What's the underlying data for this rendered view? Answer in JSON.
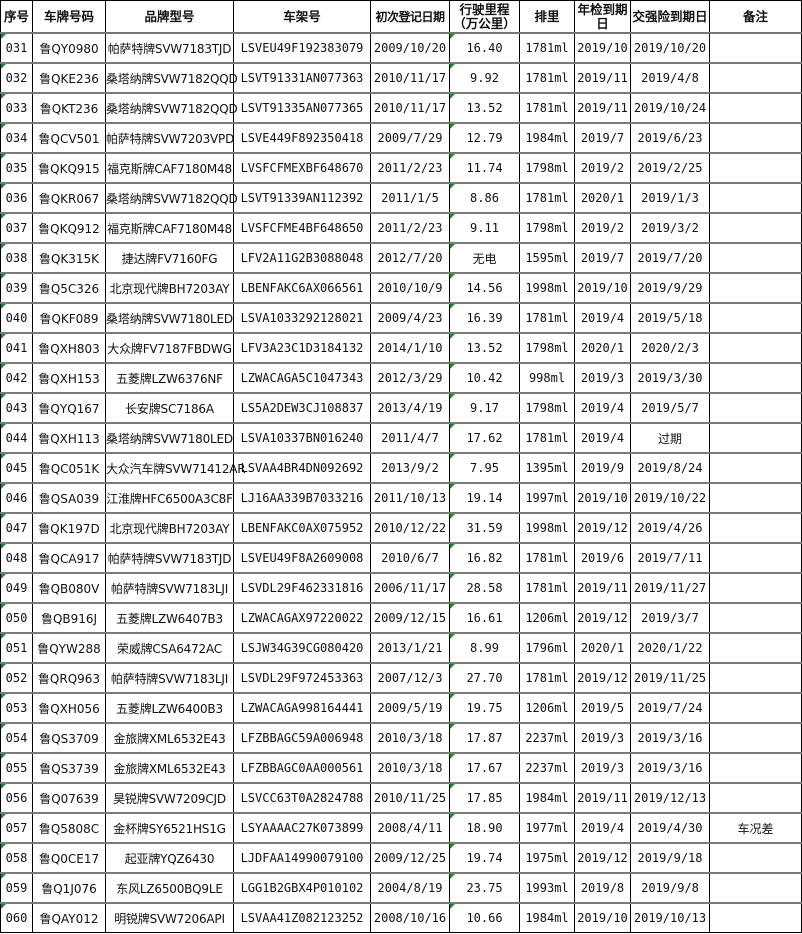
{
  "headers": [
    "序号",
    "车牌号码",
    "品牌型号",
    "车架号",
    "初次登记日期",
    "行驶里程（万公里）",
    "排里",
    "年检到期日",
    "交强险到期日",
    "备注"
  ],
  "colors": {
    "grid": "#000000",
    "row_divider": "#7a7a7a",
    "note_marker": "#1a8a2a"
  },
  "rows": [
    {
      "no": "031",
      "plate": "鲁QY0980",
      "model": "帕萨特牌SVW7183TJD",
      "vin": "LSVEU49F192383079",
      "reg": "2009/10/20",
      "km": "16.40",
      "disp": "1781ml",
      "insp": "2019/10",
      "ins": "2019/10/20",
      "note": ""
    },
    {
      "no": "032",
      "plate": "鲁QKE236",
      "model": "桑塔纳牌SVW7182QQD",
      "vin": "LSVT91331AN077363",
      "reg": "2010/11/17",
      "km": "9.92",
      "disp": "1781ml",
      "insp": "2019/11",
      "ins": "2019/4/8",
      "note": ""
    },
    {
      "no": "033",
      "plate": "鲁QKT236",
      "model": "桑塔纳牌SVW7182QQD",
      "vin": "LSVT91335AN077365",
      "reg": "2010/11/17",
      "km": "13.52",
      "disp": "1781ml",
      "insp": "2019/11",
      "ins": "2019/10/24",
      "note": ""
    },
    {
      "no": "034",
      "plate": "鲁QCV501",
      "model": "帕萨特牌SVW7203VPD",
      "vin": "LSVE449F892350418",
      "reg": "2009/7/29",
      "km": "12.79",
      "disp": "1984ml",
      "insp": "2019/7",
      "ins": "2019/6/23",
      "note": ""
    },
    {
      "no": "035",
      "plate": "鲁QKQ915",
      "model": "福克斯牌CAF7180M48",
      "vin": "LVSFCFMEXBF648670",
      "reg": "2011/2/23",
      "km": "11.74",
      "disp": "1798ml",
      "insp": "2019/2",
      "ins": "2019/2/25",
      "note": ""
    },
    {
      "no": "036",
      "plate": "鲁QKR067",
      "model": "桑塔纳牌SVW7182QQD",
      "vin": "LSVT91339AN112392",
      "reg": "2011/1/5",
      "km": "8.86",
      "disp": "1781ml",
      "insp": "2020/1",
      "ins": "2019/1/3",
      "note": ""
    },
    {
      "no": "037",
      "plate": "鲁QKQ912",
      "model": "福克斯牌CAF7180M48",
      "vin": "LVSFCFME4BF648650",
      "reg": "2011/2/23",
      "km": "9.11",
      "disp": "1798ml",
      "insp": "2019/2",
      "ins": "2019/3/2",
      "note": ""
    },
    {
      "no": "038",
      "plate": "鲁QK315K",
      "model": "捷达牌FV7160FG",
      "vin": "LFV2A11G2B3088048",
      "reg": "2012/7/20",
      "km": "无电",
      "disp": "1595ml",
      "insp": "2019/7",
      "ins": "2019/7/20",
      "note": ""
    },
    {
      "no": "039",
      "plate": "鲁Q5C326",
      "model": "北京现代牌BH7203AY",
      "vin": "LBENFAKC6AX066561",
      "reg": "2010/10/9",
      "km": "14.56",
      "disp": "1998ml",
      "insp": "2019/10",
      "ins": "2019/9/29",
      "note": ""
    },
    {
      "no": "040",
      "plate": "鲁QKF089",
      "model": "桑塔纳牌SVW7180LED",
      "vin": "LSVA1033292128021",
      "reg": "2009/4/23",
      "km": "16.39",
      "disp": "1781ml",
      "insp": "2019/4",
      "ins": "2019/5/18",
      "note": ""
    },
    {
      "no": "041",
      "plate": "鲁QXH803",
      "model": "大众牌FV7187FBDWG",
      "vin": "LFV3A23C1D3184132",
      "reg": "2014/1/10",
      "km": "13.52",
      "disp": "1798ml",
      "insp": "2020/1",
      "ins": "2020/2/3",
      "note": ""
    },
    {
      "no": "042",
      "plate": "鲁QXH153",
      "model": "五菱牌LZW6376NF",
      "vin": "LZWACAGA5C1047343",
      "reg": "2012/3/29",
      "km": "10.42",
      "disp": "998ml",
      "insp": "2019/3",
      "ins": "2019/3/30",
      "note": ""
    },
    {
      "no": "043",
      "plate": "鲁QYQ167",
      "model": "长安牌SC7186A",
      "vin": "LS5A2DEW3CJ108837",
      "reg": "2013/4/19",
      "km": "9.17",
      "disp": "1798ml",
      "insp": "2019/4",
      "ins": "2019/5/7",
      "note": ""
    },
    {
      "no": "044",
      "plate": "鲁QXH113",
      "model": "桑塔纳牌SVW7180LED",
      "vin": "LSVA10337BN016240",
      "reg": "2011/4/7",
      "km": "17.62",
      "disp": "1781ml",
      "insp": "2019/4",
      "ins": "过期",
      "note": ""
    },
    {
      "no": "045",
      "plate": "鲁QC051K",
      "model": "大众汽车牌SVW71412AR",
      "vin": "LSVAA4BR4DN092692",
      "reg": "2013/9/2",
      "km": "7.95",
      "disp": "1395ml",
      "insp": "2019/9",
      "ins": "2019/8/24",
      "note": ""
    },
    {
      "no": "046",
      "plate": "鲁QSA039",
      "model": "江淮牌HFC6500A3C8F",
      "vin": "LJ16AA339B7033216",
      "reg": "2011/10/13",
      "km": "19.14",
      "disp": "1997ml",
      "insp": "2019/10",
      "ins": "2019/10/22",
      "note": ""
    },
    {
      "no": "047",
      "plate": "鲁QK197D",
      "model": "北京现代牌BH7203AY",
      "vin": "LBENFAKC0AX075952",
      "reg": "2010/12/22",
      "km": "31.59",
      "disp": "1998ml",
      "insp": "2019/12",
      "ins": "2019/4/26",
      "note": ""
    },
    {
      "no": "048",
      "plate": "鲁QCA917",
      "model": "帕萨特牌SVW7183TJD",
      "vin": "LSVEU49F8A2609008",
      "reg": "2010/6/7",
      "km": "16.82",
      "disp": "1781ml",
      "insp": "2019/6",
      "ins": "2019/7/11",
      "note": ""
    },
    {
      "no": "049",
      "plate": "鲁QB080V",
      "model": "帕萨特牌SVW7183LJI",
      "vin": "LSVDL29F462331816",
      "reg": "2006/11/17",
      "km": "28.58",
      "disp": "1781ml",
      "insp": "2019/11",
      "ins": "2019/11/27",
      "note": ""
    },
    {
      "no": "050",
      "plate": "鲁QB916J",
      "model": "五菱牌LZW6407B3",
      "vin": "LZWACAGAX97220022",
      "reg": "2009/12/15",
      "km": "16.61",
      "disp": "1206ml",
      "insp": "2019/12",
      "ins": "2019/3/7",
      "note": ""
    },
    {
      "no": "051",
      "plate": "鲁QYW288",
      "model": "荣威牌CSA6472AC",
      "vin": "LSJW34G39CG080420",
      "reg": "2013/1/21",
      "km": "8.99",
      "disp": "1796ml",
      "insp": "2020/1",
      "ins": "2020/1/22",
      "note": ""
    },
    {
      "no": "052",
      "plate": "鲁QRQ963",
      "model": "帕萨特牌SVW7183LJI",
      "vin": "LSVDL29F972453363",
      "reg": "2007/12/3",
      "km": "27.70",
      "disp": "1781ml",
      "insp": "2019/12",
      "ins": "2019/11/25",
      "note": ""
    },
    {
      "no": "053",
      "plate": "鲁QXH056",
      "model": "五菱牌LZW6400B3",
      "vin": "LZWACAGA998164441",
      "reg": "2009/5/19",
      "km": "19.75",
      "disp": "1206ml",
      "insp": "2019/5",
      "ins": "2019/7/24",
      "note": ""
    },
    {
      "no": "054",
      "plate": "鲁QS3709",
      "model": "金旅牌XML6532E43",
      "vin": "LFZBBAGC59A006948",
      "reg": "2010/3/18",
      "km": "17.87",
      "disp": "2237ml",
      "insp": "2019/3",
      "ins": "2019/3/16",
      "note": ""
    },
    {
      "no": "055",
      "plate": "鲁QS3739",
      "model": "金旅牌XML6532E43",
      "vin": "LFZBBAGC0AA000561",
      "reg": "2010/3/18",
      "km": "17.67",
      "disp": "2237ml",
      "insp": "2019/3",
      "ins": "2019/3/16",
      "note": ""
    },
    {
      "no": "056",
      "plate": "鲁Q07639",
      "model": "昊锐牌SVW7209CJD",
      "vin": "LSVCC63T0A2824788",
      "reg": "2010/11/25",
      "km": "17.85",
      "disp": "1984ml",
      "insp": "2019/11",
      "ins": "2019/12/13",
      "note": ""
    },
    {
      "no": "057",
      "plate": "鲁Q5808C",
      "model": "金杯牌SY6521HS1G",
      "vin": "LSYAAAAC27K073899",
      "reg": "2008/4/11",
      "km": "18.90",
      "disp": "1977ml",
      "insp": "2019/4",
      "ins": "2019/4/30",
      "note": "车况差"
    },
    {
      "no": "058",
      "plate": "鲁Q0CE17",
      "model": "起亚牌YQZ6430",
      "vin": "LJDFAA14990079100",
      "reg": "2009/12/25",
      "km": "19.74",
      "disp": "1975ml",
      "insp": "2019/12",
      "ins": "2019/9/18",
      "note": ""
    },
    {
      "no": "059",
      "plate": "鲁Q1J076",
      "model": "东风LZ6500BQ9LE",
      "vin": "LGG1B2GBX4P010102",
      "reg": "2004/8/19",
      "km": "23.75",
      "disp": "1993ml",
      "insp": "2019/8",
      "ins": "2019/9/8",
      "note": ""
    },
    {
      "no": "060",
      "plate": "鲁QAY012",
      "model": "明锐牌SVW7206API",
      "vin": "LSVAA41Z082123252",
      "reg": "2008/10/16",
      "km": "10.66",
      "disp": "1984ml",
      "insp": "2019/10",
      "ins": "2019/10/13",
      "note": ""
    }
  ]
}
